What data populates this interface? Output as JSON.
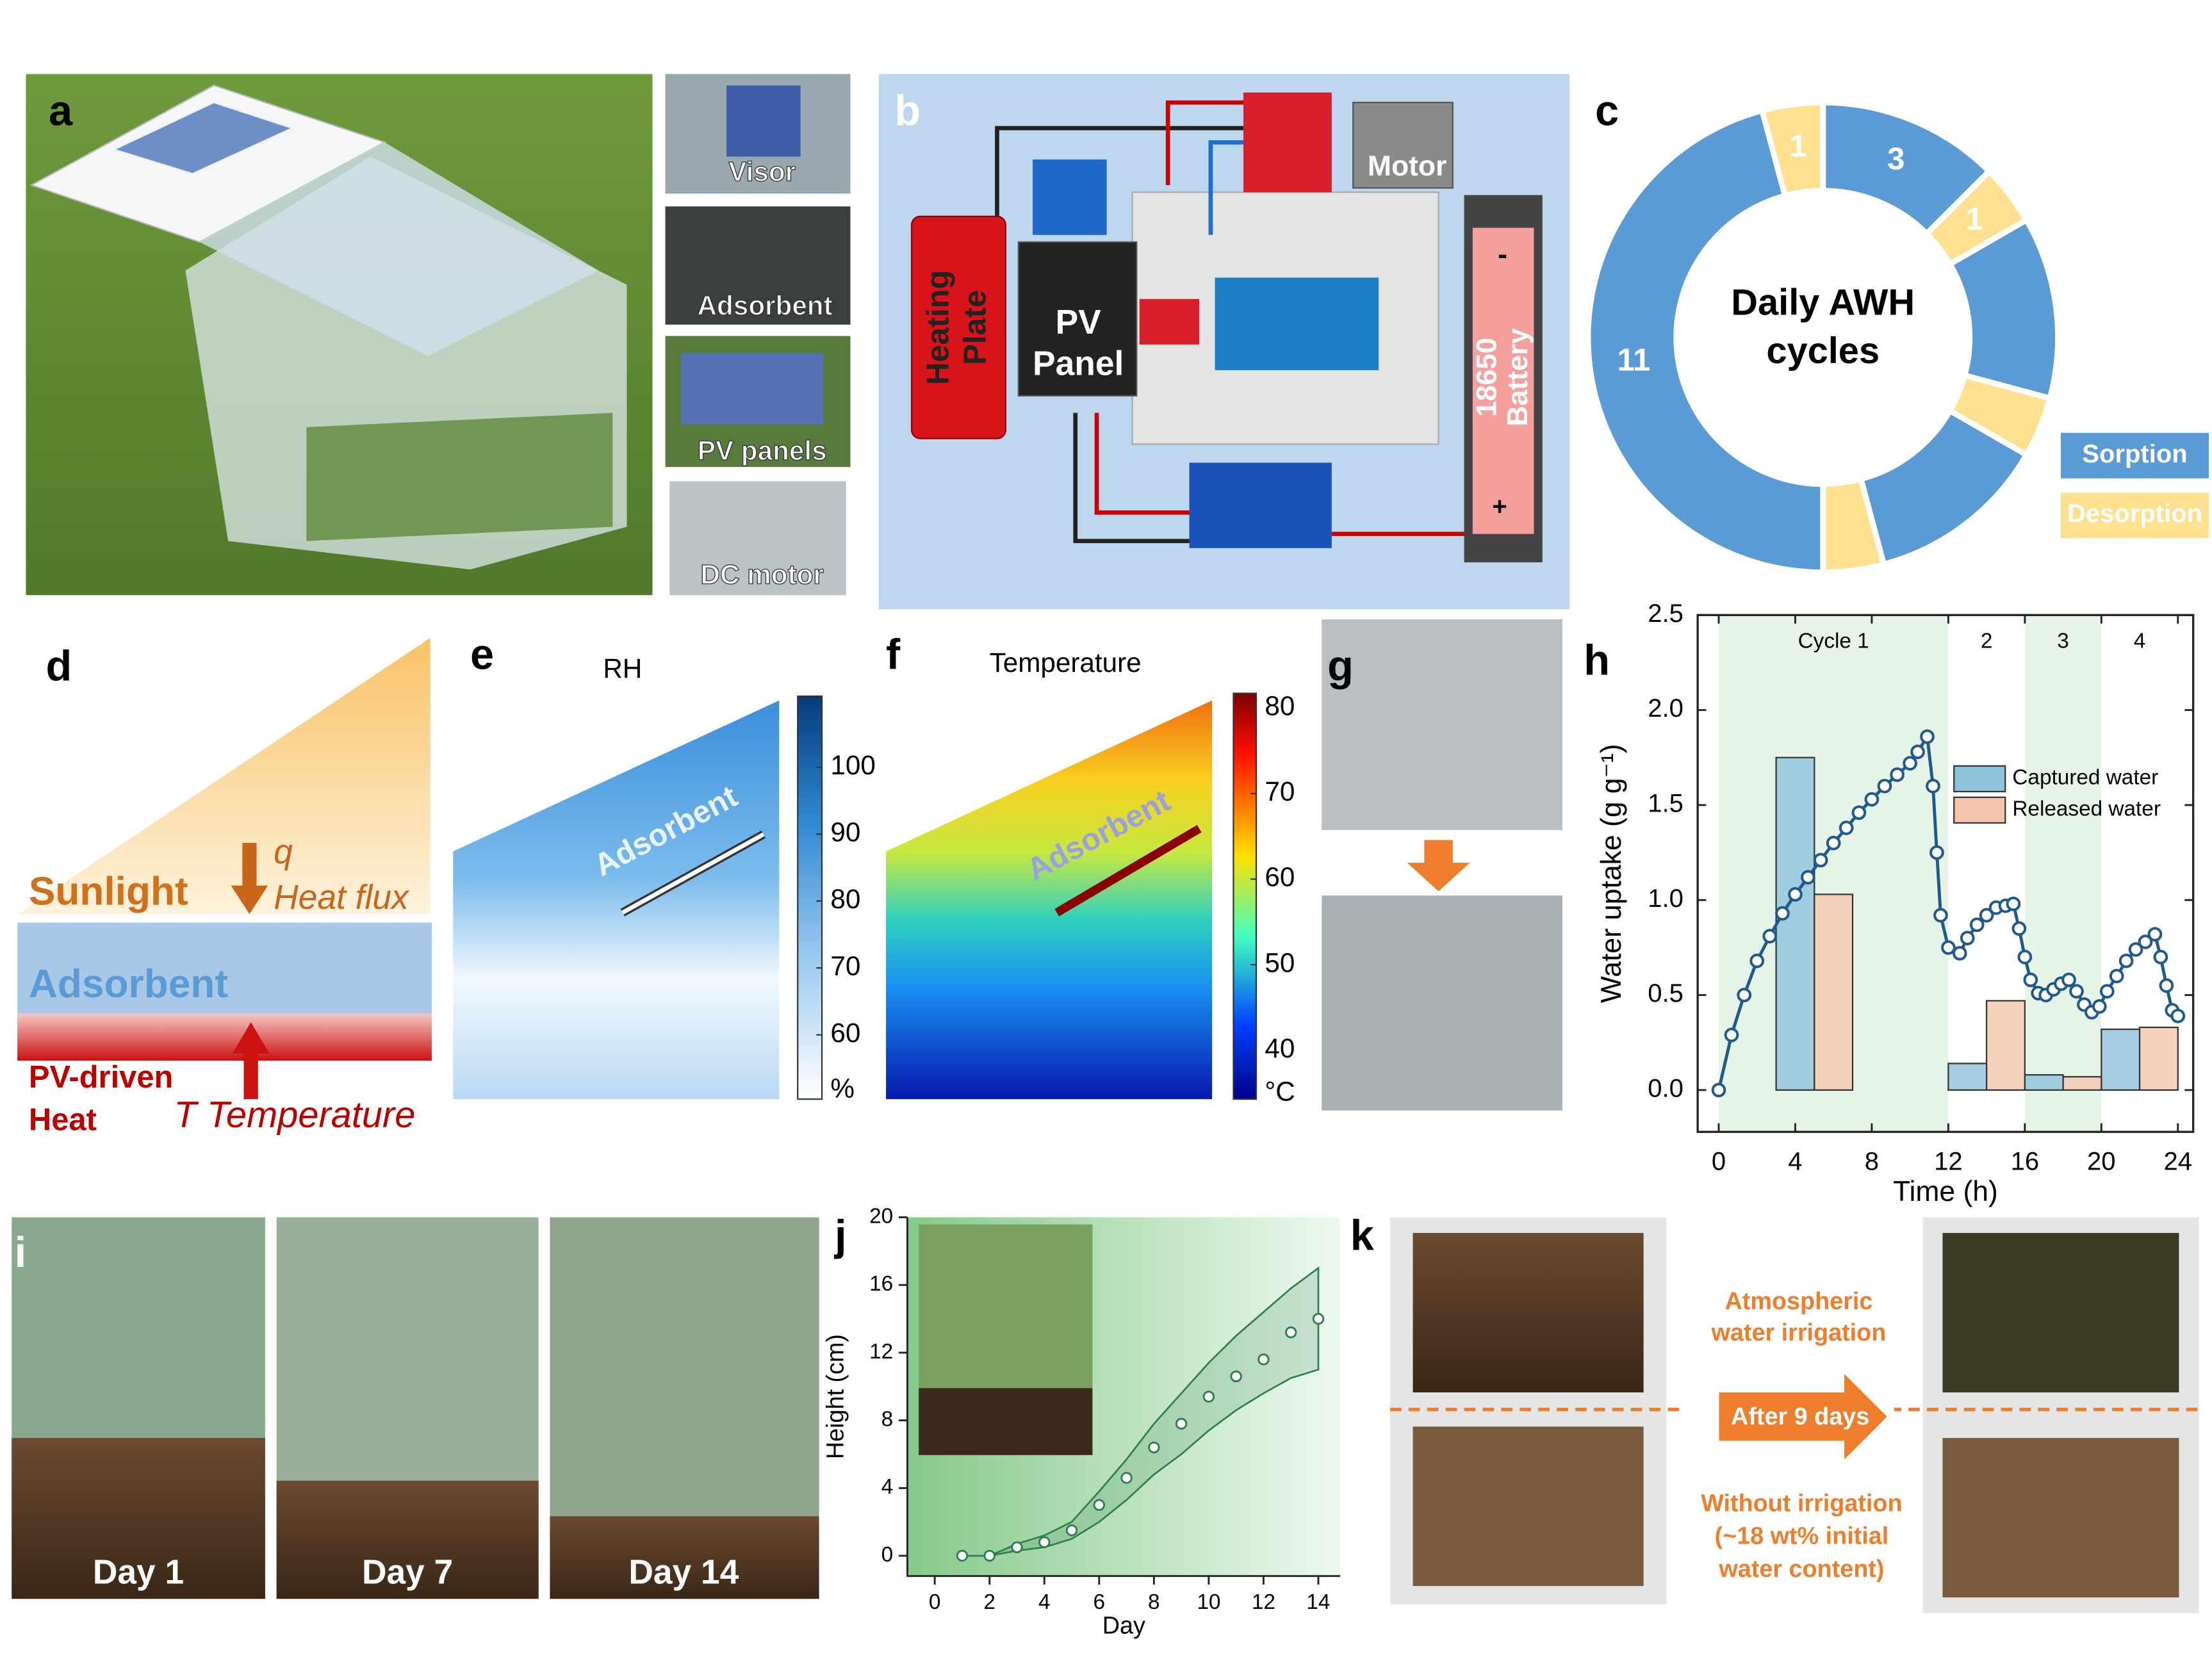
{
  "panel_labels": [
    "a",
    "b",
    "c",
    "d",
    "e",
    "f",
    "g",
    "h",
    "i",
    "j",
    "k"
  ],
  "a": {
    "insets": [
      "Visor",
      "Adsorbent",
      "PV panels",
      "DC motor"
    ]
  },
  "b": {
    "heating_plate": [
      "Heating",
      "Plate"
    ],
    "pv_panel": [
      "PV",
      "Panel"
    ],
    "motor": "Motor",
    "battery": [
      "18650",
      "Battery"
    ],
    "battery_minus": "-",
    "battery_plus": "+"
  },
  "d": {
    "sunlight": "Sunlight",
    "q": "q",
    "heat_flux": "Heat flux",
    "adsorbent": "Adsorbent",
    "pv_heat": [
      "PV-driven",
      "Heat"
    ],
    "temperature": "T Temperature"
  },
  "e": {
    "title": "RH",
    "region_label": "Adsorbent",
    "colorbar_lim": [
      50.4,
      110.6
    ],
    "colorbar_ticks": [
      60,
      70,
      80,
      90,
      100
    ],
    "colorbar_unit": "%"
  },
  "f": {
    "title": "Temperature",
    "region_label": "Adsorbent",
    "colorbar_lim": [
      34.3,
      81.7
    ],
    "colorbar_ticks": [
      40,
      50,
      60,
      70,
      80
    ],
    "colorbar_unit": "°C"
  },
  "i": {
    "days": [
      "Day 1",
      "Day 7",
      "Day 14"
    ]
  },
  "k": {
    "with_irrigation": [
      "Atmospheric",
      "water irrigation"
    ],
    "arrow": "After 9 days",
    "without_irrigation": [
      "Without irrigation",
      "(~18 wt% initial",
      "water content)"
    ]
  },
  "chart_data": [
    {
      "type": "donut",
      "title": "Daily AWH cycles",
      "series": [
        {
          "name": "Sorption",
          "color": "#5b9bd5",
          "values": [
            3,
            null,
            3,
            null,
            3,
            null,
            11,
            null
          ],
          "value_labels": [
            "3",
            null,
            null,
            null,
            null,
            null,
            "11",
            null
          ]
        },
        {
          "name": "Desorption",
          "color": "#ffe08f",
          "values": [
            null,
            1,
            null,
            1,
            null,
            1,
            null,
            1
          ],
          "value_labels": [
            null,
            "1",
            null,
            null,
            null,
            null,
            null,
            "1"
          ]
        }
      ]
    },
    {
      "type": "combo",
      "x_label": "Time (h)",
      "y_label": "Water uptake (g g⁻¹)",
      "xlim": [
        -1.1,
        24.8
      ],
      "ylim": [
        -0.22,
        2.5
      ],
      "xticks": [
        0,
        4,
        8,
        12,
        16,
        20,
        24
      ],
      "yticks": [
        {
          "value": 0,
          "label": "0.0"
        },
        0.5,
        {
          "value": 1,
          "label": "1.0"
        },
        1.5,
        {
          "value": 2,
          "label": "2.0"
        },
        2.5
      ],
      "cycles": [
        {
          "label": "Cycle 1",
          "range": [
            0,
            12
          ],
          "color": "#e6f4e8"
        },
        {
          "label": "2",
          "range": [
            12,
            16
          ],
          "color": "#ffffff"
        },
        {
          "label": "3",
          "range": [
            16,
            20
          ],
          "color": "#e6f4e8"
        },
        {
          "label": "4",
          "range": [
            20,
            24
          ],
          "color": "#ffffff"
        }
      ],
      "series": [
        {
          "name": "Captured water",
          "type": "bar",
          "color": "#8fc2dc",
          "x": [
            4,
            13,
            17,
            21
          ],
          "values": [
            1.75,
            0.14,
            0.08,
            0.32
          ]
        },
        {
          "name": "Released water",
          "type": "bar",
          "color": "#f4c6ad",
          "x": [
            6,
            15,
            19,
            23
          ],
          "values": [
            1.03,
            0.47,
            0.07,
            0.33
          ]
        },
        {
          "type": "line",
          "color": "#1f5a8a",
          "x": [
            0,
            0.67,
            1.33,
            2,
            2.67,
            3.33,
            4,
            4.67,
            5.33,
            6,
            6.67,
            7.33,
            8,
            8.67,
            9.33,
            10,
            10.4,
            10.9,
            11.2,
            11.4,
            11.6,
            12.0,
            12.6,
            13,
            13.5,
            14,
            14.5,
            15,
            15.4,
            15.7,
            16,
            16.3,
            16.7,
            17.1,
            17.5,
            17.9,
            18.3,
            18.7,
            19.1,
            19.5,
            19.9,
            20.3,
            20.8,
            21.3,
            21.8,
            22.3,
            22.8,
            23.1,
            23.4,
            23.7,
            24
          ],
          "values": [
            0,
            0.29,
            0.5,
            0.68,
            0.81,
            0.93,
            1.03,
            1.12,
            1.21,
            1.3,
            1.38,
            1.46,
            1.53,
            1.6,
            1.66,
            1.72,
            1.78,
            1.86,
            1.6,
            1.25,
            0.92,
            0.75,
            0.72,
            0.8,
            0.87,
            0.92,
            0.96,
            0.97,
            0.98,
            0.85,
            0.7,
            0.58,
            0.51,
            0.5,
            0.53,
            0.56,
            0.58,
            0.52,
            0.45,
            0.41,
            0.44,
            0.52,
            0.6,
            0.68,
            0.74,
            0.78,
            0.82,
            0.7,
            0.55,
            0.42,
            0.39
          ]
        }
      ]
    },
    {
      "type": "scatter",
      "x_label": "Day",
      "y_label": "Height (cm)",
      "xlim": [
        -1,
        14.8
      ],
      "ylim": [
        -1.2,
        20
      ],
      "xticks": [
        0,
        2,
        4,
        6,
        8,
        10,
        12,
        14
      ],
      "yticks": [
        0,
        4,
        8,
        12,
        16,
        20
      ],
      "x": [
        1,
        2,
        3,
        4,
        5,
        6,
        7,
        8,
        9,
        10,
        11,
        12,
        13,
        14
      ],
      "values": [
        0,
        0,
        0.5,
        0.8,
        1.5,
        3,
        4.6,
        6.4,
        7.8,
        9.4,
        10.6,
        11.6,
        13.2,
        14
      ],
      "lower": [
        0,
        0,
        0.3,
        0.5,
        1,
        2,
        3.3,
        4.8,
        6,
        7.4,
        8.6,
        9.6,
        10.5,
        11
      ],
      "upper": [
        0,
        0,
        0.7,
        1.2,
        2,
        3.8,
        5.7,
        7.8,
        9.6,
        11.4,
        13,
        14.4,
        15.8,
        17
      ],
      "color": "#2e7d4f"
    }
  ]
}
